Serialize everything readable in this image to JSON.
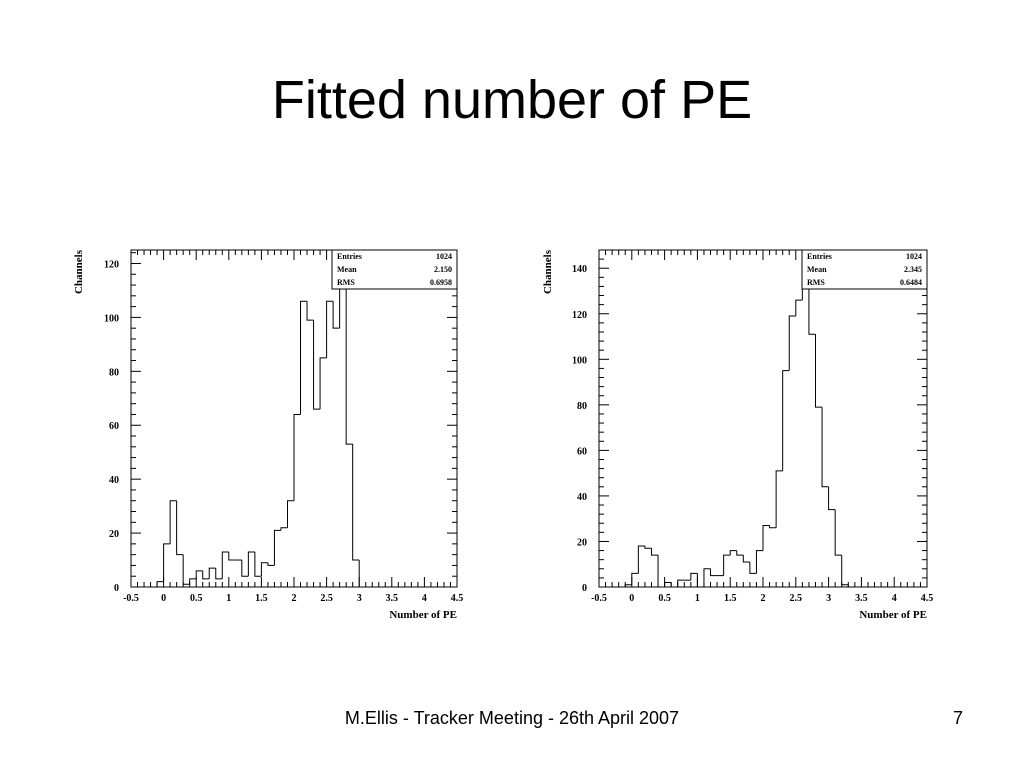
{
  "slide": {
    "title": "Fitted number of PE",
    "footer": "M.Ellis - Tracker Meeting - 26th April 2007",
    "page": "7"
  },
  "chart_data": [
    {
      "type": "histogram",
      "x_label": "Number of PE",
      "y_label": "Channels",
      "bins": [
        -0.5,
        -0.4,
        -0.3,
        -0.2,
        -0.1,
        0,
        0.1,
        0.2,
        0.3,
        0.4,
        0.5,
        0.6,
        0.7,
        0.8,
        0.9,
        1,
        1.1,
        1.2,
        1.3,
        1.4,
        1.5,
        1.6,
        1.7,
        1.8,
        1.9,
        2,
        2.1,
        2.2,
        2.3,
        2.4,
        2.5,
        2.6,
        2.7,
        2.8,
        2.9,
        3,
        3.1,
        3.2,
        3.3,
        3.4,
        3.5,
        3.6,
        3.7,
        3.8,
        3.9,
        4,
        4.1,
        4.2,
        4.3,
        4.4,
        4.5
      ],
      "values": [
        0,
        0,
        0,
        0,
        2,
        16,
        32,
        12,
        1,
        3,
        6,
        3,
        7,
        3,
        13,
        10,
        10,
        4,
        13,
        4,
        9,
        8,
        21,
        22,
        32,
        64,
        106,
        99,
        66,
        85,
        106,
        96,
        125,
        53,
        10,
        0,
        0,
        0,
        0,
        0,
        0,
        0,
        0,
        0,
        0,
        0,
        0,
        0,
        0,
        0
      ],
      "xlim": [
        -0.5,
        4.5
      ],
      "xticks": [
        -0.5,
        0,
        0.5,
        1,
        1.5,
        2,
        2.5,
        3,
        3.5,
        4,
        4.5
      ],
      "ylim": [
        0,
        125
      ],
      "yticks": [
        0,
        20,
        40,
        60,
        80,
        100,
        120
      ],
      "color": "#000000",
      "stats": [
        {
          "label": "Entries",
          "value": "1024"
        },
        {
          "label": "Mean",
          "value": "2.150"
        },
        {
          "label": "RMS",
          "value": "0.6958"
        }
      ]
    },
    {
      "type": "histogram",
      "x_label": "Number of PE",
      "y_label": "Channels",
      "bins": [
        -0.5,
        -0.4,
        -0.3,
        -0.2,
        -0.1,
        0,
        0.1,
        0.2,
        0.3,
        0.4,
        0.5,
        0.6,
        0.7,
        0.8,
        0.9,
        1,
        1.1,
        1.2,
        1.3,
        1.4,
        1.5,
        1.6,
        1.7,
        1.8,
        1.9,
        2,
        2.1,
        2.2,
        2.3,
        2.4,
        2.5,
        2.6,
        2.7,
        2.8,
        2.9,
        3,
        3.1,
        3.2,
        3.3,
        3.4,
        3.5,
        3.6,
        3.7,
        3.8,
        3.9,
        4,
        4.1,
        4.2,
        4.3,
        4.4,
        4.5
      ],
      "values": [
        0,
        0,
        0,
        0,
        1,
        6,
        18,
        17,
        14,
        0,
        2,
        0,
        3,
        3,
        6,
        0,
        8,
        5,
        5,
        14,
        16,
        14,
        11,
        6,
        16,
        27,
        26,
        51,
        95,
        119,
        126,
        148,
        111,
        79,
        44,
        34,
        14,
        1,
        0,
        0,
        0,
        0,
        0,
        0,
        0,
        0,
        0,
        0,
        0,
        0
      ],
      "xlim": [
        -0.5,
        4.5
      ],
      "xticks": [
        -0.5,
        0,
        0.5,
        1,
        1.5,
        2,
        2.5,
        3,
        3.5,
        4,
        4.5
      ],
      "ylim": [
        0,
        148
      ],
      "yticks": [
        0,
        20,
        40,
        60,
        80,
        100,
        120,
        140
      ],
      "color": "#000000",
      "stats": [
        {
          "label": "Entries",
          "value": "1024"
        },
        {
          "label": "Mean",
          "value": "2.345"
        },
        {
          "label": "RMS",
          "value": "0.6484"
        }
      ]
    }
  ]
}
